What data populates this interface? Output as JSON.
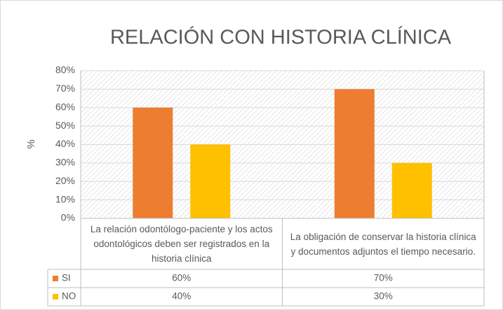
{
  "chart_data": {
    "type": "bar",
    "title": "RELACIÓN CON HISTORIA CLÍNICA",
    "y_label": "%",
    "categories": [
      "La relación odontólogo-paciente y los actos odontológicos deben ser registrados en la historia clínica",
      "La obligación de conservar la historia clínica y documentos adjuntos el tiempo necesario."
    ],
    "series": [
      {
        "name": "SI",
        "color": "#ED7D31",
        "values": [
          60,
          70
        ],
        "value_labels": [
          "60%",
          "70%"
        ]
      },
      {
        "name": "NO",
        "color": "#FFC000",
        "values": [
          40,
          30
        ],
        "value_labels": [
          "40%",
          "30%"
        ]
      }
    ],
    "ylim": [
      0,
      80
    ],
    "yticks": [
      {
        "value": 0,
        "label": "0%"
      },
      {
        "value": 10,
        "label": "10%"
      },
      {
        "value": 20,
        "label": "20%"
      },
      {
        "value": 30,
        "label": "30%"
      },
      {
        "value": 40,
        "label": "40%"
      },
      {
        "value": 50,
        "label": "50%"
      },
      {
        "value": 60,
        "label": "60%"
      },
      {
        "value": 70,
        "label": "70%"
      },
      {
        "value": 80,
        "label": "80%"
      }
    ],
    "grid": true,
    "data_table": true
  }
}
